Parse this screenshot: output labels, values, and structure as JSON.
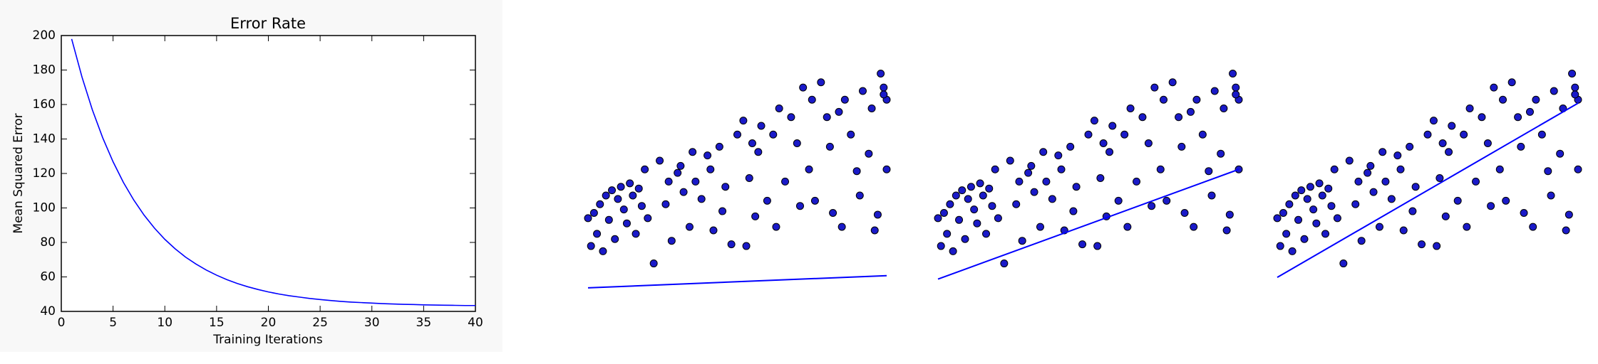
{
  "chart_data": [
    {
      "type": "line",
      "title": "Error Rate",
      "xlabel": "Training Iterations",
      "ylabel": "Mean Squared Error",
      "color": "#0000ff",
      "x": [
        1,
        2,
        3,
        4,
        5,
        6,
        7,
        8,
        9,
        10,
        11,
        12,
        13,
        14,
        15,
        16,
        17,
        18,
        19,
        20,
        21,
        22,
        23,
        24,
        25,
        26,
        27,
        28,
        29,
        30,
        31,
        32,
        33,
        34,
        35,
        36,
        37,
        38,
        39,
        40
      ],
      "values": [
        198,
        175.9,
        156.9,
        140.7,
        126.8,
        114.8,
        104.6,
        95.8,
        88.3,
        81.8,
        76.3,
        71.5,
        67.5,
        64.0,
        61.0,
        58.4,
        56.2,
        54.3,
        52.7,
        51.3,
        50.1,
        49.1,
        48.3,
        47.5,
        46.9,
        46.3,
        45.8,
        45.4,
        45.1,
        44.8,
        44.5,
        44.3,
        44.1,
        44.0,
        43.8,
        43.7,
        43.6,
        43.5,
        43.4,
        43.4
      ],
      "xlim": [
        0,
        40
      ],
      "xticks": [
        0,
        5,
        10,
        15,
        20,
        25,
        30,
        35,
        40
      ],
      "ylim": [
        40,
        200
      ],
      "yticks": [
        40,
        60,
        80,
        100,
        120,
        140,
        160,
        180,
        200
      ]
    },
    {
      "type": "scatter",
      "color": "#1a1ac8",
      "xlim": [
        0,
        100
      ],
      "ylim": [
        50,
        190
      ],
      "x": [
        0,
        1,
        2,
        3,
        4,
        5,
        6,
        7,
        8,
        9,
        10,
        11,
        12,
        13,
        14,
        15,
        16,
        17,
        18,
        19,
        20,
        22,
        24,
        26,
        27,
        28,
        30,
        31,
        32,
        34,
        35,
        36,
        38,
        40,
        41,
        42,
        44,
        45,
        46,
        48,
        50,
        52,
        53,
        54,
        55,
        56,
        57,
        58,
        60,
        62,
        63,
        64,
        66,
        68,
        70,
        71,
        72,
        74,
        75,
        76,
        78,
        80,
        81,
        82,
        84,
        85,
        86,
        88,
        90,
        91,
        92,
        94,
        95,
        96,
        98,
        99,
        100,
        100,
        99,
        97
      ],
      "values": [
        97,
        81,
        100,
        88,
        105,
        78,
        110,
        96,
        113,
        85,
        108,
        115,
        102,
        94,
        117,
        110,
        88,
        114,
        104,
        125,
        97,
        71,
        130,
        105,
        118,
        84,
        123,
        127,
        112,
        92,
        135,
        118,
        108,
        133,
        125,
        90,
        138,
        101,
        115,
        82,
        145,
        153,
        81,
        120,
        140,
        98,
        135,
        150,
        107,
        145,
        92,
        160,
        118,
        155,
        140,
        104,
        172,
        125,
        165,
        107,
        175,
        155,
        138,
        100,
        158,
        92,
        165,
        145,
        124,
        110,
        170,
        134,
        160,
        90,
        180,
        172,
        165,
        125,
        168,
        99
      ],
      "fit_color": "#0000ff",
      "fit_x": [
        0,
        100
      ],
      "fit_values": [
        57,
        64
      ]
    },
    {
      "type": "scatter",
      "color": "#1a1ac8",
      "xlim": [
        0,
        100
      ],
      "ylim": [
        50,
        190
      ],
      "x": [
        0,
        1,
        2,
        3,
        4,
        5,
        6,
        7,
        8,
        9,
        10,
        11,
        12,
        13,
        14,
        15,
        16,
        17,
        18,
        19,
        20,
        22,
        24,
        26,
        27,
        28,
        30,
        31,
        32,
        34,
        35,
        36,
        38,
        40,
        41,
        42,
        44,
        45,
        46,
        48,
        50,
        52,
        53,
        54,
        55,
        56,
        57,
        58,
        60,
        62,
        63,
        64,
        66,
        68,
        70,
        71,
        72,
        74,
        75,
        76,
        78,
        80,
        81,
        82,
        84,
        85,
        86,
        88,
        90,
        91,
        92,
        94,
        95,
        96,
        98,
        99,
        100,
        100,
        99,
        97
      ],
      "values": [
        97,
        81,
        100,
        88,
        105,
        78,
        110,
        96,
        113,
        85,
        108,
        115,
        102,
        94,
        117,
        110,
        88,
        114,
        104,
        125,
        97,
        71,
        130,
        105,
        118,
        84,
        123,
        127,
        112,
        92,
        135,
        118,
        108,
        133,
        125,
        90,
        138,
        101,
        115,
        82,
        145,
        153,
        81,
        120,
        140,
        98,
        135,
        150,
        107,
        145,
        92,
        160,
        118,
        155,
        140,
        104,
        172,
        125,
        165,
        107,
        175,
        155,
        138,
        100,
        158,
        92,
        165,
        145,
        124,
        110,
        170,
        134,
        160,
        90,
        180,
        172,
        165,
        125,
        168,
        99
      ],
      "fit_color": "#0000ff",
      "fit_x": [
        0,
        100
      ],
      "fit_values": [
        62,
        125
      ]
    },
    {
      "type": "scatter",
      "color": "#1a1ac8",
      "xlim": [
        0,
        100
      ],
      "ylim": [
        50,
        190
      ],
      "x": [
        0,
        1,
        2,
        3,
        4,
        5,
        6,
        7,
        8,
        9,
        10,
        11,
        12,
        13,
        14,
        15,
        16,
        17,
        18,
        19,
        20,
        22,
        24,
        26,
        27,
        28,
        30,
        31,
        32,
        34,
        35,
        36,
        38,
        40,
        41,
        42,
        44,
        45,
        46,
        48,
        50,
        52,
        53,
        54,
        55,
        56,
        57,
        58,
        60,
        62,
        63,
        64,
        66,
        68,
        70,
        71,
        72,
        74,
        75,
        76,
        78,
        80,
        81,
        82,
        84,
        85,
        86,
        88,
        90,
        91,
        92,
        94,
        95,
        96,
        98,
        99,
        100,
        100,
        99,
        97
      ],
      "values": [
        97,
        81,
        100,
        88,
        105,
        78,
        110,
        96,
        113,
        85,
        108,
        115,
        102,
        94,
        117,
        110,
        88,
        114,
        104,
        125,
        97,
        71,
        130,
        105,
        118,
        84,
        123,
        127,
        112,
        92,
        135,
        118,
        108,
        133,
        125,
        90,
        138,
        101,
        115,
        82,
        145,
        153,
        81,
        120,
        140,
        98,
        135,
        150,
        107,
        145,
        92,
        160,
        118,
        155,
        140,
        104,
        172,
        125,
        165,
        107,
        175,
        155,
        138,
        100,
        158,
        92,
        165,
        145,
        124,
        110,
        170,
        134,
        160,
        90,
        180,
        172,
        165,
        125,
        168,
        99
      ],
      "fit_color": "#0000ff",
      "fit_x": [
        0,
        100
      ],
      "fit_values": [
        63,
        163
      ]
    }
  ]
}
